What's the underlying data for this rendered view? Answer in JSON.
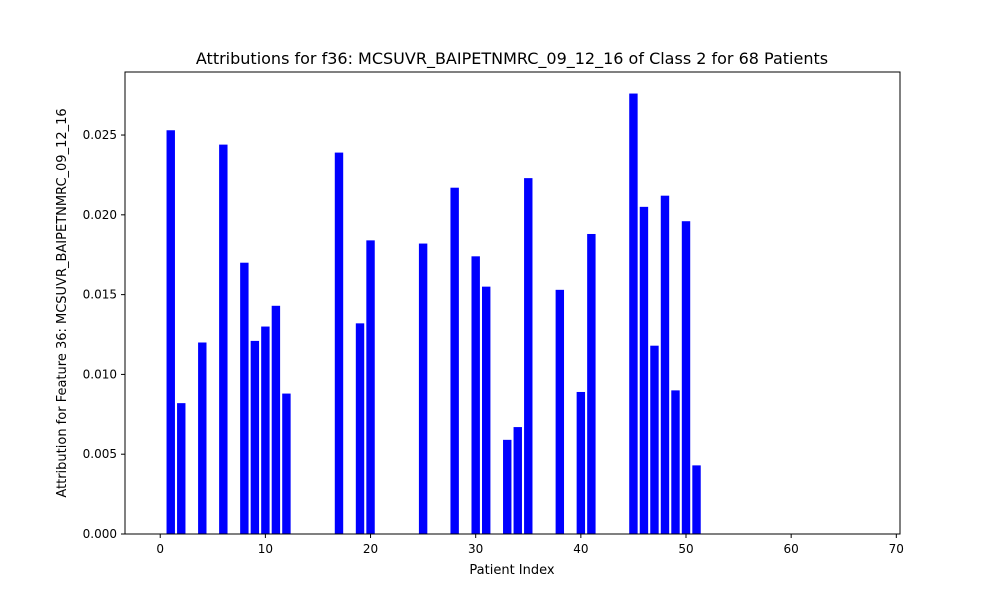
{
  "chart_data": {
    "type": "bar",
    "title": "Attributions for f36: MCSUVR_BAIPETNMRC_09_12_16 of Class 2 for 68 Patients",
    "xlabel": "Patient Index",
    "ylabel": "Attribution for Feature 36: MCSUVR_BAIPETNMRC_09_12_16",
    "xlim": [
      -3.35,
      70.35
    ],
    "ylim": [
      0,
      0.02895
    ],
    "xticks": [
      0,
      10,
      20,
      30,
      40,
      50,
      60,
      70
    ],
    "yticks": [
      0.0,
      0.005,
      0.01,
      0.015,
      0.02,
      0.025
    ],
    "ytick_labels": [
      "0.000",
      "0.005",
      "0.010",
      "0.015",
      "0.020",
      "0.025"
    ],
    "bar_color": "#0000ff",
    "grid": false,
    "x": [
      1,
      2,
      4,
      6,
      8,
      9,
      10,
      11,
      12,
      17,
      19,
      20,
      25,
      28,
      30,
      31,
      33,
      34,
      35,
      38,
      40,
      41,
      45,
      46,
      47,
      48,
      49,
      50,
      51
    ],
    "values": [
      0.0253,
      0.0082,
      0.012,
      0.0244,
      0.017,
      0.0121,
      0.013,
      0.0143,
      0.0088,
      0.0239,
      0.0132,
      0.0184,
      0.0182,
      0.0217,
      0.0174,
      0.0155,
      0.0059,
      0.0067,
      0.0223,
      0.0153,
      0.0089,
      0.0188,
      0.0276,
      0.0205,
      0.0118,
      0.0212,
      0.009,
      0.0196,
      0.0043
    ]
  }
}
